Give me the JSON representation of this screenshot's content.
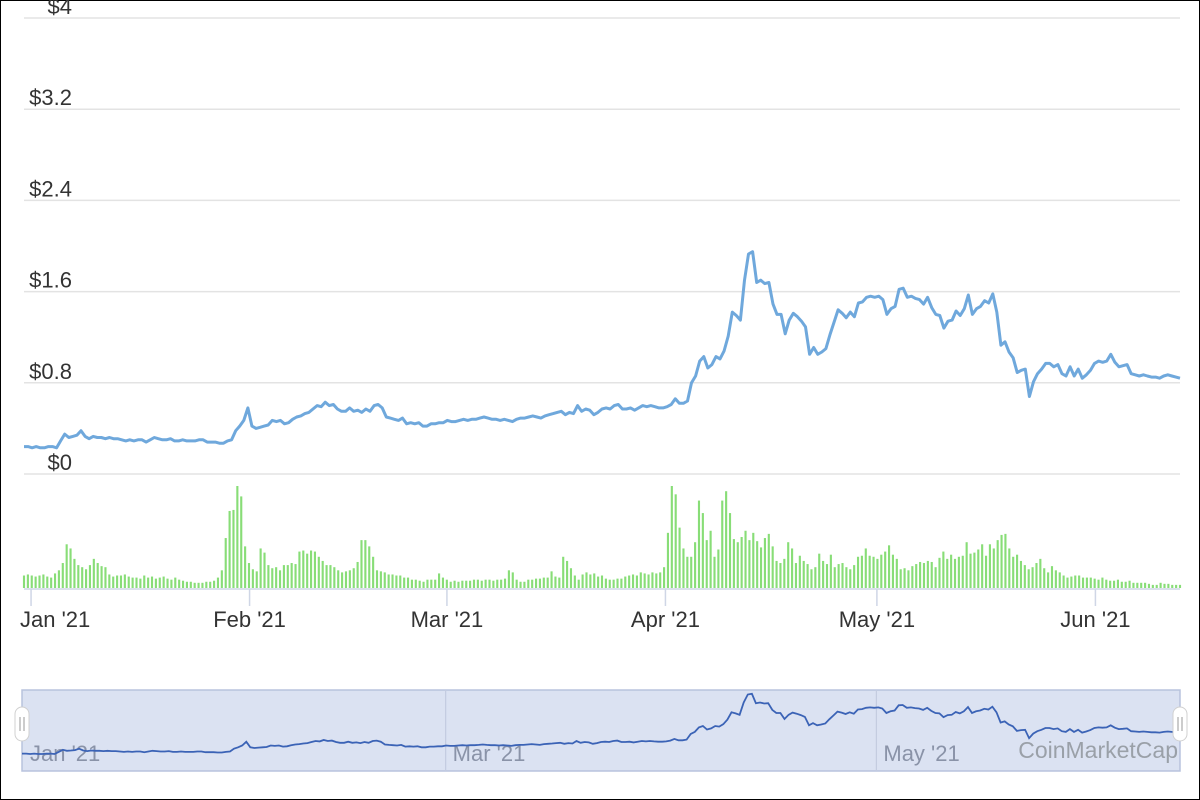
{
  "chart_data": {
    "type": "line",
    "series": [
      {
        "kind": "price",
        "color": "#6fa8dc",
        "values": [
          0.24,
          0.24,
          0.23,
          0.24,
          0.23,
          0.23,
          0.24,
          0.24,
          0.23,
          0.29,
          0.35,
          0.32,
          0.33,
          0.34,
          0.38,
          0.33,
          0.31,
          0.33,
          0.32,
          0.32,
          0.31,
          0.32,
          0.31,
          0.31,
          0.3,
          0.29,
          0.3,
          0.29,
          0.3,
          0.3,
          0.28,
          0.3,
          0.32,
          0.31,
          0.3,
          0.3,
          0.31,
          0.29,
          0.29,
          0.3,
          0.29,
          0.29,
          0.29,
          0.3,
          0.3,
          0.28,
          0.28,
          0.28,
          0.27,
          0.27,
          0.29,
          0.3,
          0.38,
          0.42,
          0.47,
          0.58,
          0.42,
          0.4,
          0.41,
          0.42,
          0.43,
          0.47,
          0.46,
          0.47,
          0.44,
          0.45,
          0.48,
          0.5,
          0.51,
          0.53,
          0.54,
          0.57,
          0.6,
          0.59,
          0.63,
          0.6,
          0.61,
          0.57,
          0.55,
          0.55,
          0.58,
          0.55,
          0.56,
          0.54,
          0.57,
          0.55,
          0.6,
          0.61,
          0.58,
          0.5,
          0.49,
          0.48,
          0.47,
          0.49,
          0.44,
          0.45,
          0.44,
          0.45,
          0.42,
          0.42,
          0.44,
          0.44,
          0.45,
          0.45,
          0.47,
          0.46,
          0.46,
          0.47,
          0.48,
          0.47,
          0.48,
          0.48,
          0.49,
          0.5,
          0.49,
          0.48,
          0.48,
          0.47,
          0.48,
          0.47,
          0.46,
          0.48,
          0.49,
          0.49,
          0.5,
          0.51,
          0.5,
          0.49,
          0.51,
          0.52,
          0.53,
          0.54,
          0.55,
          0.52,
          0.54,
          0.53,
          0.6,
          0.55,
          0.57,
          0.56,
          0.52,
          0.54,
          0.57,
          0.58,
          0.57,
          0.6,
          0.61,
          0.57,
          0.57,
          0.58,
          0.56,
          0.58,
          0.6,
          0.59,
          0.6,
          0.59,
          0.58,
          0.58,
          0.59,
          0.61,
          0.66,
          0.62,
          0.62,
          0.64,
          0.8,
          0.86,
          0.99,
          1.03,
          0.93,
          0.96,
          1.03,
          1.01,
          1.08,
          1.21,
          1.42,
          1.39,
          1.35,
          1.7,
          1.93,
          1.95,
          1.68,
          1.7,
          1.67,
          1.68,
          1.49,
          1.4,
          1.4,
          1.23,
          1.35,
          1.41,
          1.38,
          1.34,
          1.29,
          1.05,
          1.11,
          1.05,
          1.07,
          1.1,
          1.22,
          1.33,
          1.44,
          1.41,
          1.37,
          1.42,
          1.38,
          1.5,
          1.51,
          1.55,
          1.56,
          1.55,
          1.56,
          1.53,
          1.4,
          1.45,
          1.47,
          1.62,
          1.63,
          1.55,
          1.56,
          1.54,
          1.53,
          1.49,
          1.55,
          1.46,
          1.4,
          1.39,
          1.28,
          1.34,
          1.35,
          1.43,
          1.39,
          1.45,
          1.57,
          1.4,
          1.45,
          1.47,
          1.52,
          1.5,
          1.58,
          1.42,
          1.13,
          1.16,
          1.07,
          1.02,
          0.89,
          0.91,
          0.92,
          0.68,
          0.81,
          0.88,
          0.92,
          0.97,
          0.97,
          0.94,
          0.96,
          0.88,
          0.86,
          0.94,
          0.86,
          0.92,
          0.84,
          0.87,
          0.91,
          0.97,
          0.99,
          0.98,
          0.99,
          1.05,
          0.98,
          0.94,
          0.95,
          0.96,
          0.88,
          0.87,
          0.86,
          0.87,
          0.86,
          0.85,
          0.85,
          0.84,
          0.86,
          0.87,
          0.86,
          0.85,
          0.84
        ]
      },
      {
        "kind": "volume",
        "color": "#88dd77",
        "values": [
          12,
          13,
          12,
          11,
          12,
          13,
          11,
          10,
          14,
          17,
          24,
          42,
          38,
          28,
          22,
          20,
          18,
          22,
          28,
          24,
          21,
          20,
          13,
          11,
          12,
          12,
          13,
          11,
          10,
          10,
          9,
          12,
          10,
          11,
          9,
          10,
          11,
          9,
          8,
          10,
          8,
          7,
          6,
          6,
          5,
          5,
          5,
          6,
          6,
          7,
          10,
          17,
          48,
          74,
          75,
          98,
          88,
          40,
          24,
          18,
          16,
          38,
          34,
          22,
          19,
          20,
          17,
          22,
          22,
          24,
          23,
          35,
          36,
          33,
          36,
          35,
          30,
          26,
          22,
          22,
          20,
          17,
          15,
          16,
          17,
          19,
          25,
          46,
          46,
          40,
          30,
          17,
          16,
          15,
          13,
          13,
          12,
          12,
          10,
          10,
          8,
          8,
          7,
          6,
          8,
          8,
          8,
          14,
          10,
          8,
          6,
          7,
          6,
          7,
          7,
          7,
          8,
          8,
          7,
          8,
          8,
          7,
          8,
          8,
          9,
          17,
          15,
          8,
          6,
          6,
          8,
          8,
          9,
          9,
          10,
          10,
          16,
          11,
          10,
          30,
          26,
          19,
          12,
          8,
          13,
          15,
          13,
          14,
          11,
          12,
          9,
          8,
          8,
          9,
          9,
          11,
          12,
          13,
          12,
          15,
          14,
          13,
          15,
          14,
          15,
          20,
          53,
          98,
          90,
          58,
          38,
          30,
          30,
          44,
          84,
          72,
          46,
          55,
          30,
          37,
          84,
          93,
          72,
          47,
          44,
          49,
          55,
          46,
          53,
          45,
          39,
          48,
          52,
          40,
          26,
          24,
          28,
          44,
          38,
          24,
          31,
          26,
          23,
          18,
          20,
          33,
          26,
          23,
          32,
          20,
          23,
          24,
          20,
          18,
          22,
          30,
          31,
          38,
          31,
          30,
          28,
          32,
          35,
          41,
          32,
          28,
          18,
          19,
          17,
          21,
          23,
          25,
          24,
          26,
          25,
          20,
          29,
          35,
          28,
          32,
          28,
          30,
          31,
          44,
          33,
          34,
          37,
          42,
          31,
          42,
          38,
          46,
          51,
          52,
          38,
          30,
          32,
          26,
          22,
          18,
          20,
          24,
          28,
          19,
          15,
          21,
          17,
          15,
          12,
          10,
          11,
          12,
          12,
          10,
          10,
          10,
          9,
          8,
          10,
          8,
          7,
          7,
          8,
          6,
          6,
          7,
          5,
          5,
          5,
          5,
          4,
          3,
          3,
          5,
          4,
          4,
          3,
          3,
          3
        ]
      }
    ],
    "x": {
      "start": "2020-12-31",
      "end": "2021-06-13"
    },
    "ylim": [
      0,
      4
    ],
    "ytick_labels": [
      "$0",
      "$0.8",
      "$1.6",
      "$2.4",
      "$3.2",
      "$4"
    ],
    "xtick_labels": [
      "Jan '21",
      "Feb '21",
      "Mar '21",
      "Apr '21",
      "May '21",
      "Jun '21"
    ],
    "navigator_tick_labels": [
      "Jan '21",
      "Mar '21",
      "May '21"
    ],
    "grid": true,
    "watermark": "CoinMarketCap"
  }
}
